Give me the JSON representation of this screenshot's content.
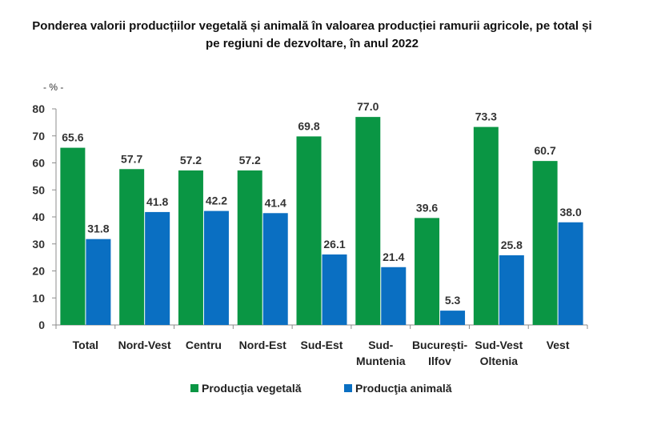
{
  "chart_data": {
    "type": "bar",
    "title": [
      "Ponderea valorii producțiilor vegetală și animală în valoarea producției ramurii agricole, pe total și",
      "pe regiuni de dezvoltare, în anul 2022"
    ],
    "unit_label": "- % -",
    "categories": [
      [
        "Total"
      ],
      [
        "Nord-Vest"
      ],
      [
        "Centru"
      ],
      [
        "Nord-Est"
      ],
      [
        "Sud-Est"
      ],
      [
        "Sud-",
        "Muntenia"
      ],
      [
        "București-",
        "Ilfov"
      ],
      [
        "Sud-Vest",
        "Oltenia"
      ],
      [
        "Vest"
      ]
    ],
    "series": [
      {
        "name": "Producţia vegetală",
        "color": "#0a9644",
        "values": [
          65.6,
          57.7,
          57.2,
          57.2,
          69.8,
          77.0,
          39.6,
          73.3,
          60.7
        ]
      },
      {
        "name": "Producţia animală",
        "color": "#0a6fc2",
        "values": [
          31.8,
          41.8,
          42.2,
          41.4,
          26.1,
          21.4,
          5.3,
          25.8,
          38.0
        ]
      }
    ],
    "ylim": [
      0,
      80
    ],
    "yticks": [
      0,
      10,
      20,
      30,
      40,
      50,
      60,
      70,
      80
    ],
    "grid": false,
    "legend": "bottom"
  }
}
